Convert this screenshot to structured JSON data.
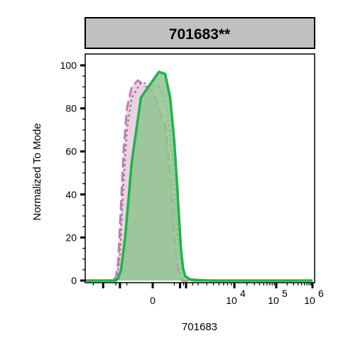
{
  "chart_data": {
    "type": "area",
    "title": "701683**",
    "xlabel": "701683",
    "ylabel": "Normalized To Mode",
    "ylim": [
      0,
      100
    ],
    "y_ticks": [
      "0",
      "20",
      "40",
      "60",
      "80",
      "100"
    ],
    "x_tick_labels": [
      {
        "base": "0",
        "exp": "",
        "x": 0
      },
      {
        "base": "10",
        "exp": "4",
        "x": 10000
      },
      {
        "base": "10",
        "exp": "5",
        "x": 100000
      },
      {
        "base": "10",
        "exp": "6",
        "x": 1000000
      }
    ],
    "x_scale": "biexponential",
    "x_display_range": [
      -3000,
      1000000
    ],
    "grid": false,
    "legend": "none",
    "series": [
      {
        "style": "dashed-pink",
        "color": "#cc77b5",
        "x": [
          -3000,
          -1800,
          -1500,
          -1200,
          -950,
          -700,
          -500,
          -300,
          -150,
          0,
          150,
          300,
          450,
          600,
          800,
          1000,
          1300,
          1700,
          2500,
          4000,
          10000,
          100000,
          1000000
        ],
        "y": [
          0,
          0,
          1,
          8,
          30,
          60,
          80,
          90,
          93,
          88,
          72,
          50,
          28,
          12,
          4,
          1,
          0,
          0,
          0,
          0,
          0,
          0,
          0
        ]
      },
      {
        "style": "dotted-gray",
        "color": "#888888",
        "x": [
          -3000,
          -1600,
          -1300,
          -1000,
          -750,
          -500,
          -300,
          -100,
          50,
          200,
          400,
          600,
          800,
          1000,
          1300,
          1700,
          2500,
          4000,
          10000,
          100000,
          1000000
        ],
        "y": [
          0,
          0,
          2,
          12,
          40,
          70,
          85,
          92,
          90,
          80,
          58,
          32,
          13,
          4,
          1,
          0,
          0,
          0,
          0,
          0,
          0
        ]
      },
      {
        "style": "filled-green",
        "color": "#1db34a",
        "fill": "#8fc48f",
        "x": [
          -3000,
          -1500,
          -1200,
          -900,
          -600,
          -300,
          -100,
          50,
          150,
          300,
          500,
          700,
          900,
          1100,
          1400,
          1800,
          2300,
          3000,
          4500,
          10000,
          100000,
          1000000
        ],
        "y": [
          0,
          0,
          1,
          5,
          20,
          55,
          85,
          97,
          96,
          85,
          65,
          45,
          28,
          15,
          6,
          2,
          0.5,
          0.2,
          0,
          0,
          0,
          0
        ]
      }
    ]
  }
}
